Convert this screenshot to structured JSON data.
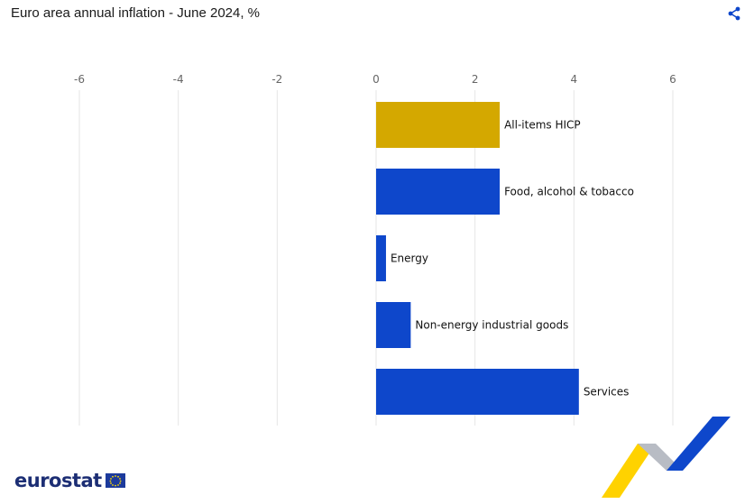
{
  "header": {
    "title": "Euro area annual inflation - June 2024, %",
    "share_icon": "share-icon"
  },
  "colors": {
    "headline": "#d4a800",
    "component": "#0e47cb",
    "grid": "#e6e6e6",
    "tick_text": "#666666",
    "logo_text": "#1c2e74"
  },
  "chart_data": {
    "type": "bar",
    "orientation": "horizontal",
    "title": "Euro area annual inflation - June 2024, %",
    "categories": [
      "All-items HICP",
      "Food, alcohol & tobacco",
      "Energy",
      "Non-energy industrial goods",
      "Services"
    ],
    "values": [
      2.5,
      2.5,
      0.2,
      0.7,
      4.1
    ],
    "bar_colors": [
      "#d4a800",
      "#0e47cb",
      "#0e47cb",
      "#0e47cb",
      "#0e47cb"
    ],
    "xlim": [
      -6,
      6
    ],
    "xticks": [
      "-6",
      "-4",
      "-2",
      "0",
      "2",
      "4",
      "6"
    ],
    "xaxis_position": "top",
    "grid": true,
    "legend": "none"
  },
  "footer": {
    "logo_text": "eurostat",
    "flag_icon": "eu-flag-icon",
    "decoration": "eurostat-ribbon-logo"
  }
}
